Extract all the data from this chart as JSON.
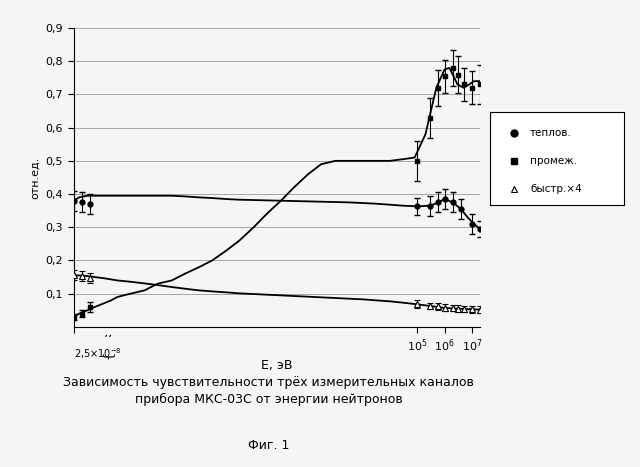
{
  "title": "Зависимость чувствительности трёх измерительных каналов\nприбора МКС-03С от энергии нейтронов",
  "subtitle": "Фиг. 1",
  "xlabel": "E, эВ",
  "ylabel": "отн.ед.",
  "ylim": [
    0,
    0.9
  ],
  "yticks": [
    0.1,
    0.2,
    0.3,
    0.4,
    0.5,
    0.6,
    0.7,
    0.8,
    0.9
  ],
  "ytick_labels": [
    "0,1",
    "0,2",
    "0,3",
    "0,4",
    "0,5",
    "0,6",
    "0,7",
    "0,8",
    "0,9"
  ],
  "xmin": 2.5e-08,
  "xmax": 20000000.0,
  "legend_labels": [
    "теплов.",
    "промеж.",
    "быстр.×4"
  ],
  "thermal_curve_x": [
    2.5e-08,
    4e-08,
    8e-08,
    1.5e-07,
    3e-07,
    6e-07,
    1e-06,
    3e-06,
    1e-05,
    3e-05,
    0.0001,
    0.0003,
    0.001,
    0.003,
    0.01,
    0.03,
    0.1,
    0.3,
    1.0,
    3.0,
    10.0,
    30.0,
    100.0,
    300.0,
    1000.0,
    3000.0,
    10000.0,
    30000.0,
    100000.0,
    300000.0,
    600000.0,
    1000000.0,
    2000000.0,
    4000000.0,
    7000000.0,
    12000000.0,
    20000000.0
  ],
  "thermal_curve_y": [
    0.38,
    0.39,
    0.395,
    0.395,
    0.395,
    0.395,
    0.395,
    0.395,
    0.395,
    0.395,
    0.395,
    0.393,
    0.39,
    0.388,
    0.385,
    0.383,
    0.382,
    0.381,
    0.38,
    0.379,
    0.378,
    0.377,
    0.376,
    0.375,
    0.373,
    0.371,
    0.368,
    0.365,
    0.363,
    0.365,
    0.375,
    0.385,
    0.375,
    0.355,
    0.33,
    0.31,
    0.295
  ],
  "intermediate_curve_x": [
    2.5e-08,
    4e-08,
    8e-08,
    1.5e-07,
    3e-07,
    6e-07,
    1e-06,
    3e-06,
    1e-05,
    3e-05,
    0.0001,
    0.0003,
    0.001,
    0.003,
    0.01,
    0.03,
    0.1,
    0.3,
    1.0,
    3.0,
    10.0,
    30.0,
    100.0,
    300.0,
    1000.0,
    3000.0,
    10000.0,
    30000.0,
    80000.0,
    200000.0,
    500000.0,
    1000000.0,
    1500000.0,
    2000000.0,
    3000000.0,
    5000000.0,
    8000000.0,
    12000000.0,
    20000000.0
  ],
  "intermediate_curve_y": [
    0.03,
    0.04,
    0.05,
    0.06,
    0.07,
    0.08,
    0.09,
    0.1,
    0.11,
    0.13,
    0.14,
    0.16,
    0.18,
    0.2,
    0.23,
    0.26,
    0.3,
    0.34,
    0.38,
    0.42,
    0.46,
    0.49,
    0.5,
    0.5,
    0.5,
    0.5,
    0.5,
    0.505,
    0.51,
    0.58,
    0.72,
    0.775,
    0.78,
    0.76,
    0.73,
    0.72,
    0.73,
    0.74,
    0.74
  ],
  "fast_curve_x": [
    2.5e-08,
    4e-08,
    8e-08,
    1.5e-07,
    3e-07,
    6e-07,
    1e-06,
    3e-06,
    1e-05,
    3e-05,
    0.0001,
    0.0003,
    0.001,
    0.003,
    0.01,
    0.03,
    0.1,
    0.3,
    1.0,
    3.0,
    10.0,
    30.0,
    100.0,
    300.0,
    1000.0,
    3000.0,
    10000.0,
    30000.0,
    100000.0,
    300000.0,
    1000000.0,
    3000000.0,
    10000000.0,
    20000000.0
  ],
  "fast_curve_y": [
    0.155,
    0.155,
    0.153,
    0.15,
    0.147,
    0.143,
    0.14,
    0.136,
    0.131,
    0.126,
    0.12,
    0.115,
    0.11,
    0.107,
    0.104,
    0.101,
    0.099,
    0.097,
    0.095,
    0.093,
    0.091,
    0.089,
    0.087,
    0.085,
    0.083,
    0.08,
    0.077,
    0.073,
    0.068,
    0.063,
    0.057,
    0.055,
    0.053,
    0.052
  ],
  "thermal_points_x": [
    2.5e-08,
    5e-08,
    1e-07,
    100000.0,
    300000.0,
    600000.0,
    1000000.0,
    2000000.0,
    4000000.0,
    10000000.0,
    20000000.0
  ],
  "thermal_points_y": [
    0.38,
    0.375,
    0.37,
    0.363,
    0.365,
    0.375,
    0.385,
    0.375,
    0.355,
    0.31,
    0.295
  ],
  "thermal_points_yerr": [
    0.03,
    0.03,
    0.03,
    0.025,
    0.03,
    0.03,
    0.03,
    0.03,
    0.03,
    0.03,
    0.025
  ],
  "intermediate_points_x": [
    2.5e-08,
    5e-08,
    1e-07,
    100000.0,
    300000.0,
    600000.0,
    1000000.0,
    2000000.0,
    3000000.0,
    5000000.0,
    10000000.0,
    20000000.0
  ],
  "intermediate_points_y": [
    0.03,
    0.04,
    0.06,
    0.5,
    0.63,
    0.72,
    0.755,
    0.78,
    0.76,
    0.73,
    0.72,
    0.73
  ],
  "intermediate_points_yerr": [
    0.01,
    0.01,
    0.015,
    0.06,
    0.06,
    0.055,
    0.05,
    0.055,
    0.055,
    0.05,
    0.05,
    0.06
  ],
  "fast_points_x": [
    2.5e-08,
    5e-08,
    1e-07,
    100000.0,
    300000.0,
    600000.0,
    1000000.0,
    2000000.0,
    3000000.0,
    5000000.0,
    10000000.0,
    20000000.0
  ],
  "fast_points_y": [
    0.155,
    0.152,
    0.148,
    0.068,
    0.063,
    0.062,
    0.058,
    0.057,
    0.055,
    0.054,
    0.053,
    0.052
  ],
  "fast_points_yerr": [
    0.015,
    0.015,
    0.015,
    0.012,
    0.01,
    0.01,
    0.01,
    0.01,
    0.01,
    0.01,
    0.01,
    0.01
  ],
  "line_color": "#000000",
  "bg_color": "#f5f5f5",
  "grid_color": "#999999"
}
